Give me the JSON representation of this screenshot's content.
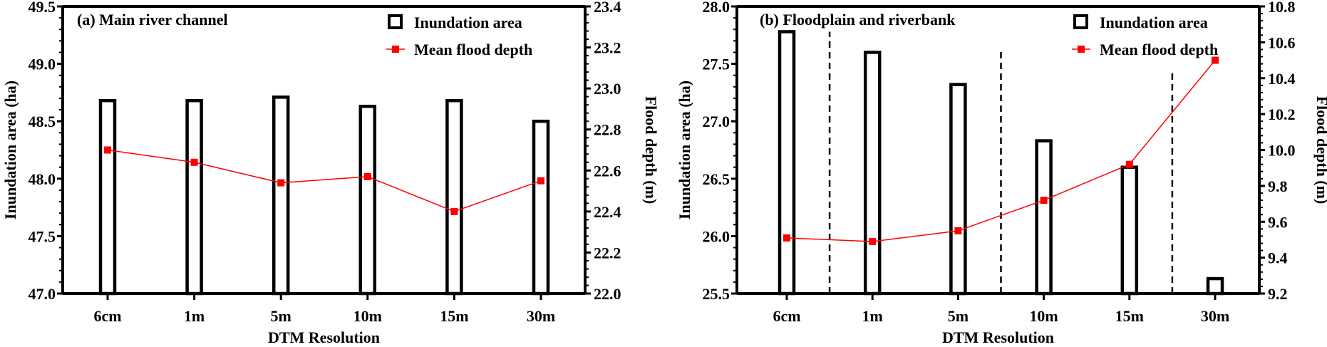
{
  "chart_data": [
    {
      "type": "bar+line",
      "title": "(a) Main river channel",
      "categories": [
        "6cm",
        "1m",
        "5m",
        "10m",
        "15m",
        "30m"
      ],
      "xlabel": "DTM Resolution",
      "ylabel": "Inundation area (ha)",
      "y2label": "Flood depth (m)",
      "ylim": [
        47.0,
        49.5
      ],
      "yticks": [
        "47.0",
        "47.5",
        "48.0",
        "48.5",
        "49.0",
        "49.5"
      ],
      "y2lim": [
        22.0,
        23.4
      ],
      "y2ticks": [
        "22.0",
        "22.2",
        "22.4",
        "22.6",
        "22.8",
        "23.0",
        "23.2",
        "23.4"
      ],
      "series": [
        {
          "name": "Inundation area",
          "type": "bar",
          "axis": "left",
          "values": [
            48.68,
            48.68,
            48.71,
            48.63,
            48.68,
            48.5
          ]
        },
        {
          "name": "Mean flood depth",
          "type": "line",
          "axis": "right",
          "color": "#ff0000",
          "values": [
            22.7,
            22.64,
            22.54,
            22.57,
            22.4,
            22.55
          ]
        }
      ],
      "legend_position": "top-right",
      "dividers_after": []
    },
    {
      "type": "bar+line",
      "title": "(b) Floodplain and riverbank",
      "categories": [
        "6cm",
        "1m",
        "5m",
        "10m",
        "15m",
        "30m"
      ],
      "xlabel": "DTM Resolution",
      "ylabel": "Inundation area (ha)",
      "y2label": "Flood depth (m)",
      "ylim": [
        25.5,
        28.0
      ],
      "yticks": [
        "25.5",
        "26.0",
        "26.5",
        "27.0",
        "27.5",
        "28.0"
      ],
      "y2lim": [
        9.2,
        10.8
      ],
      "y2ticks": [
        "9.2",
        "9.4",
        "9.6",
        "9.8",
        "10.0",
        "10.2",
        "10.4",
        "10.6",
        "10.8"
      ],
      "series": [
        {
          "name": "Inundation area",
          "type": "bar",
          "axis": "left",
          "values": [
            27.78,
            27.6,
            27.32,
            26.83,
            26.6,
            25.63
          ]
        },
        {
          "name": "Mean flood depth",
          "type": "line",
          "axis": "right",
          "color": "#ff0000",
          "values": [
            9.51,
            9.49,
            9.55,
            9.72,
            9.92,
            10.5
          ]
        }
      ],
      "legend_position": "top-right",
      "dividers_after": [
        0.5,
        2.5,
        4.5
      ],
      "divider_top_values": [
        27.78,
        27.63,
        27.43
      ]
    }
  ]
}
